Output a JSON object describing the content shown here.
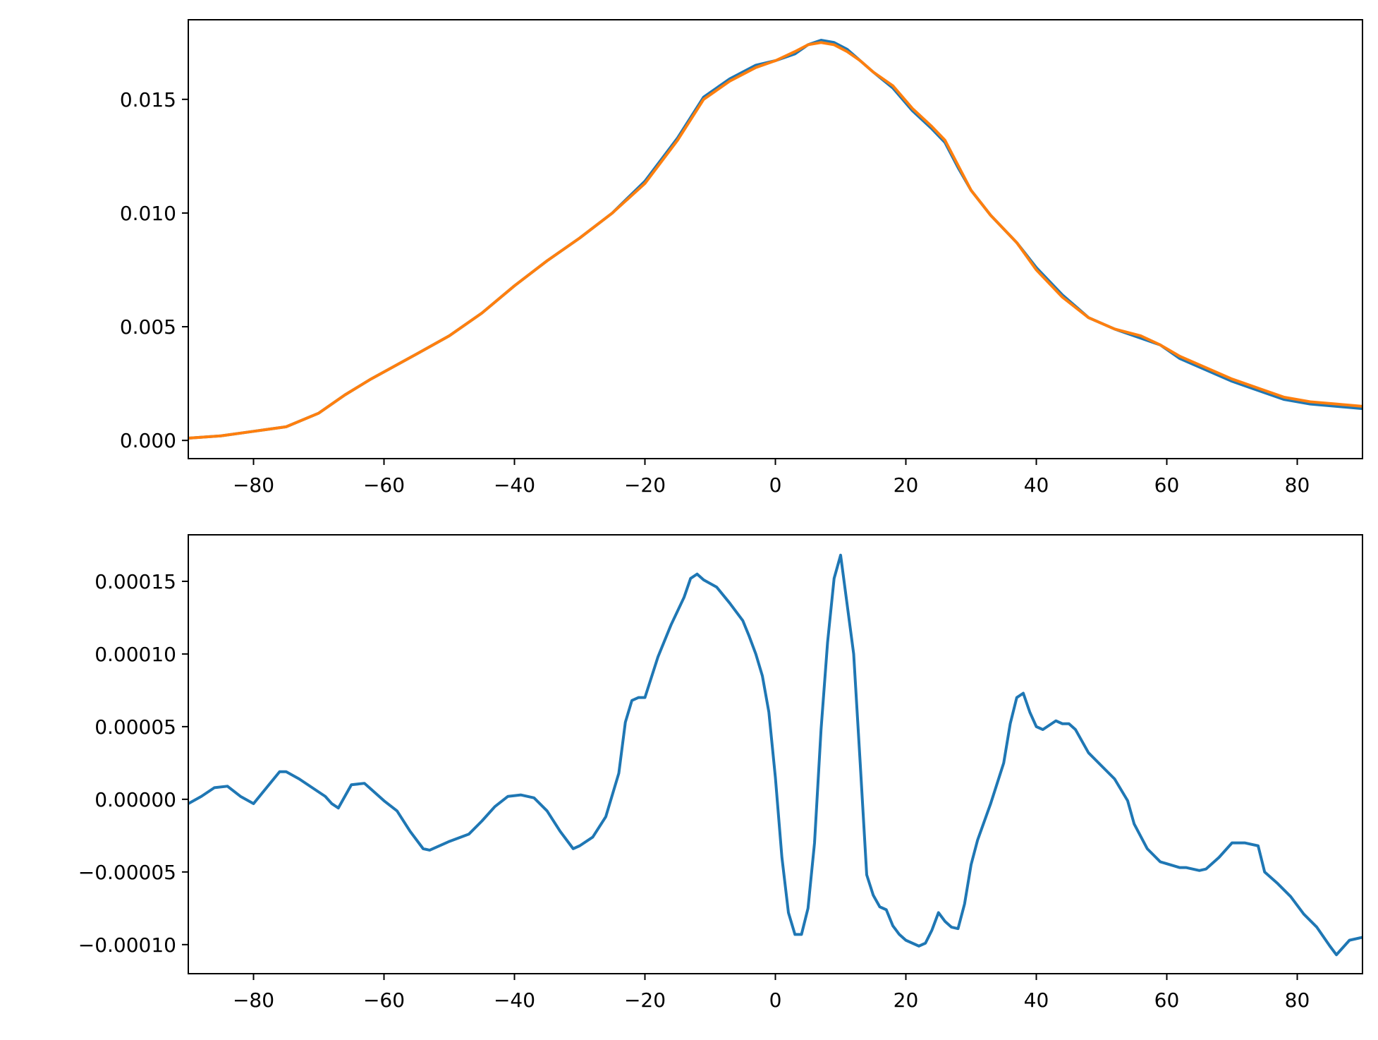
{
  "chart_data": [
    {
      "type": "line",
      "title": "",
      "xlabel": "",
      "ylabel": "",
      "xlim": [
        -90,
        90
      ],
      "ylim": [
        -0.0008,
        0.0185
      ],
      "grid": false,
      "xticks": [
        -80,
        -60,
        -40,
        -20,
        0,
        20,
        40,
        60,
        80
      ],
      "xtick_labels": [
        "−80",
        "−60",
        "−40",
        "−20",
        "0",
        "20",
        "40",
        "60",
        "80"
      ],
      "yticks": [
        0.0,
        0.005,
        0.01,
        0.015
      ],
      "ytick_labels": [
        "0.000",
        "0.005",
        "0.010",
        "0.015"
      ],
      "series": [
        {
          "color": "#1f77b4",
          "x": [
            -90,
            -85,
            -80,
            -75,
            -70,
            -66,
            -62,
            -55,
            -50,
            -45,
            -40,
            -35,
            -30,
            -25,
            -20,
            -15,
            -11,
            -7,
            -3,
            0,
            3,
            5,
            7,
            9,
            11,
            13,
            15,
            18,
            21,
            24,
            26,
            28,
            30,
            33,
            37,
            40,
            44,
            48,
            52,
            56,
            59,
            62,
            66,
            70,
            74,
            78,
            82,
            86,
            90
          ],
          "y": [
            0.0001,
            0.0002,
            0.0004,
            0.0006,
            0.0012,
            0.002,
            0.0027,
            0.0038,
            0.0046,
            0.0056,
            0.0068,
            0.0079,
            0.0089,
            0.01,
            0.0114,
            0.0133,
            0.0151,
            0.0159,
            0.0165,
            0.0167,
            0.017,
            0.0174,
            0.0176,
            0.0175,
            0.0172,
            0.0167,
            0.0162,
            0.0155,
            0.0145,
            0.0137,
            0.0131,
            0.012,
            0.011,
            0.0099,
            0.0087,
            0.0076,
            0.0064,
            0.0054,
            0.0049,
            0.0045,
            0.0042,
            0.0036,
            0.0031,
            0.0026,
            0.0022,
            0.0018,
            0.0016,
            0.0015,
            0.0014
          ]
        },
        {
          "color": "#ff7f0e",
          "x": [
            -90,
            -85,
            -80,
            -75,
            -70,
            -66,
            -62,
            -55,
            -50,
            -45,
            -40,
            -35,
            -30,
            -25,
            -20,
            -15,
            -11,
            -7,
            -3,
            0,
            3,
            5,
            7,
            9,
            11,
            13,
            15,
            18,
            21,
            24,
            26,
            28,
            30,
            33,
            37,
            40,
            44,
            48,
            52,
            56,
            59,
            62,
            66,
            70,
            74,
            78,
            82,
            86,
            90
          ],
          "y": [
            0.0001,
            0.0002,
            0.0004,
            0.0006,
            0.0012,
            0.002,
            0.0027,
            0.0038,
            0.0046,
            0.0056,
            0.0068,
            0.0079,
            0.0089,
            0.01,
            0.0113,
            0.0132,
            0.015,
            0.0158,
            0.0164,
            0.0167,
            0.0171,
            0.0174,
            0.0175,
            0.0174,
            0.0171,
            0.0167,
            0.0162,
            0.0156,
            0.0146,
            0.0138,
            0.0132,
            0.0121,
            0.011,
            0.0099,
            0.0087,
            0.0075,
            0.0063,
            0.0054,
            0.0049,
            0.0046,
            0.0042,
            0.0037,
            0.0032,
            0.0027,
            0.0023,
            0.0019,
            0.0017,
            0.0016,
            0.0015
          ]
        }
      ]
    },
    {
      "type": "line",
      "title": "",
      "xlabel": "",
      "ylabel": "",
      "xlim": [
        -90,
        90
      ],
      "ylim": [
        -0.00012,
        0.000182
      ],
      "grid": false,
      "xticks": [
        -80,
        -60,
        -40,
        -20,
        0,
        20,
        40,
        60,
        80
      ],
      "xtick_labels": [
        "−80",
        "−60",
        "−40",
        "−20",
        "0",
        "20",
        "40",
        "60",
        "80"
      ],
      "yticks": [
        -0.0001,
        -5e-05,
        0.0,
        5e-05,
        0.0001,
        0.00015
      ],
      "ytick_labels": [
        "−0.00010",
        "−0.00005",
        "0.00000",
        "0.00005",
        "0.00010",
        "0.00015"
      ],
      "series": [
        {
          "color": "#1f77b4",
          "x": [
            -90,
            -88,
            -86,
            -84,
            -82,
            -80,
            -78,
            -76,
            -75,
            -73,
            -71,
            -69,
            -68,
            -67,
            -65,
            -63,
            -62,
            -60,
            -58,
            -56,
            -54,
            -53,
            -50,
            -47,
            -45,
            -43,
            -41,
            -39,
            -37,
            -35,
            -33,
            -31,
            -30,
            -28,
            -26,
            -24,
            -23,
            -22,
            -21,
            -20,
            -18,
            -16,
            -14,
            -13,
            -12,
            -11,
            -9,
            -7,
            -5,
            -4,
            -3,
            -2,
            -1,
            0,
            1,
            2,
            3,
            4,
            5,
            6,
            7,
            8,
            9,
            10,
            12,
            13,
            14,
            15,
            16,
            17,
            18,
            19,
            20,
            22,
            23,
            24,
            25,
            26,
            27,
            28,
            29,
            30,
            31,
            33,
            35,
            36,
            37,
            38,
            39,
            40,
            41,
            43,
            44,
            45,
            46,
            48,
            50,
            52,
            54,
            55,
            57,
            59,
            62,
            63,
            65,
            66,
            68,
            70,
            71,
            72,
            74,
            75,
            77,
            79,
            81,
            83,
            85,
            86,
            88,
            90
          ],
          "y": [
            -3e-06,
            2e-06,
            8e-06,
            9e-06,
            2e-06,
            -3e-06,
            8e-06,
            1.9e-05,
            1.9e-05,
            1.4e-05,
            8e-06,
            2e-06,
            -3e-06,
            -6e-06,
            1e-05,
            1.1e-05,
            7e-06,
            -1e-06,
            -8e-06,
            -2.2e-05,
            -3.4e-05,
            -3.5e-05,
            -2.9e-05,
            -2.4e-05,
            -1.5e-05,
            -5e-06,
            2e-06,
            3e-06,
            1e-06,
            -8e-06,
            -2.2e-05,
            -3.4e-05,
            -3.2e-05,
            -2.6e-05,
            -1.2e-05,
            1.8e-05,
            5.3e-05,
            6.8e-05,
            7e-05,
            7e-05,
            9.8e-05,
            0.00012,
            0.000139,
            0.000152,
            0.000155,
            0.000151,
            0.000146,
            0.000135,
            0.000123,
            0.000112,
            0.0001,
            8.5e-05,
            6e-05,
            1.5e-05,
            -4e-05,
            -7.8e-05,
            -9.3e-05,
            -9.3e-05,
            -7.5e-05,
            -3e-05,
            4.8e-05,
            0.000108,
            0.000152,
            0.000168,
            0.0001,
            2.5e-05,
            -5.2e-05,
            -6.6e-05,
            -7.4e-05,
            -7.6e-05,
            -8.7e-05,
            -9.3e-05,
            -9.7e-05,
            -0.000101,
            -9.9e-05,
            -9e-05,
            -7.8e-05,
            -8.4e-05,
            -8.8e-05,
            -8.9e-05,
            -7.2e-05,
            -4.5e-05,
            -2.8e-05,
            -3e-06,
            2.5e-05,
            5.2e-05,
            7e-05,
            7.3e-05,
            6e-05,
            5e-05,
            4.8e-05,
            5.4e-05,
            5.2e-05,
            5.2e-05,
            4.8e-05,
            3.2e-05,
            2.3e-05,
            1.4e-05,
            -1e-06,
            -1.7e-05,
            -3.4e-05,
            -4.3e-05,
            -4.7e-05,
            -4.7e-05,
            -4.9e-05,
            -4.8e-05,
            -4e-05,
            -3e-05,
            -3e-05,
            -3e-05,
            -3.2e-05,
            -5e-05,
            -5.8e-05,
            -6.7e-05,
            -7.9e-05,
            -8.8e-05,
            -0.000101,
            -0.000107,
            -9.7e-05,
            -9.5e-05
          ]
        }
      ]
    }
  ]
}
